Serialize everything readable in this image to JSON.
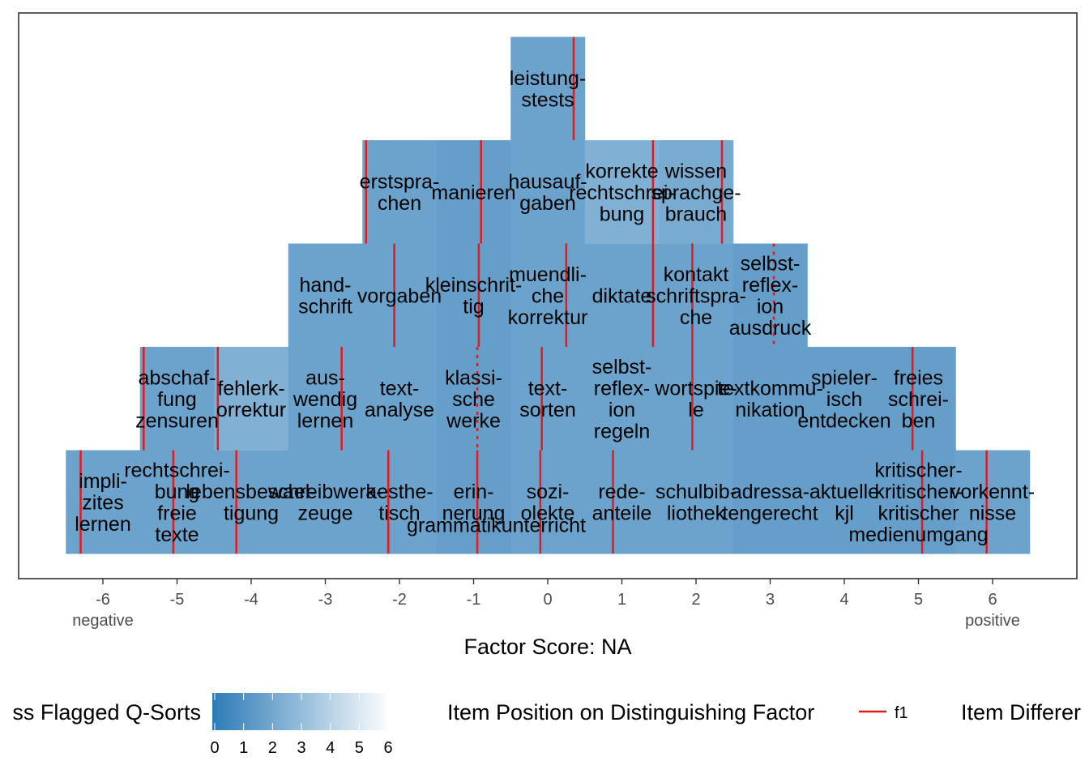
{
  "chart_data": {
    "type": "heatmap",
    "xlabel": "Factor Score: NA",
    "x_ticks": [
      -6,
      -5,
      -4,
      -3,
      -2,
      -1,
      0,
      1,
      2,
      3,
      4,
      5,
      6
    ],
    "pole_labels": {
      "negative": "negative",
      "positive": "positive"
    },
    "fill_scale": {
      "low": "#2c7bb6",
      "high": "#ffffff",
      "domain": [
        0,
        6
      ]
    },
    "line_color": "#e41a1c",
    "legend": {
      "fill_title": "ss Flagged Q-Sorts",
      "fill_breaks": [
        "0",
        "1",
        "2",
        "3",
        "4",
        "5",
        "6"
      ],
      "line_title": "Item Position on Distinguishing Factor",
      "line_key": "f1",
      "other_title": "Item Differer"
    },
    "items": [
      {
        "x": -6,
        "row": 0,
        "label": "impli-\nzites\nlernen",
        "fill": 1.8,
        "mark": -6.3,
        "style": "solid"
      },
      {
        "x": -5,
        "row": 0,
        "label": "rechtschrei-\nbung\nfreie\ntexte",
        "fill": 1.8,
        "mark": -5.05,
        "style": "solid"
      },
      {
        "x": -4,
        "row": 0,
        "label": "lebensbewael-\ntigung",
        "fill": 1.8,
        "mark": -4.2,
        "style": "solid"
      },
      {
        "x": -3,
        "row": 0,
        "label": "schreibwerk-\nzeuge",
        "fill": 1.8,
        "mark": null,
        "style": null
      },
      {
        "x": -2,
        "row": 0,
        "label": "aesthe-\ntisch",
        "fill": 1.8,
        "mark": -2.15,
        "style": "solid"
      },
      {
        "x": -1,
        "row": 0,
        "label": "erin-\nnerung",
        "fill": 1.6,
        "mark": -0.95,
        "style": "solid"
      },
      {
        "x": 0,
        "row": 0,
        "label": "sozi-\nolekte",
        "fill": 1.8,
        "mark": -0.1,
        "style": "solid"
      },
      {
        "x": 1,
        "row": 0,
        "label": "rede-\nanteile",
        "fill": 1.8,
        "mark": 0.88,
        "style": "solid"
      },
      {
        "x": 2,
        "row": 0,
        "label": "schulbib-\nliothek",
        "fill": 1.8,
        "mark": null,
        "style": null
      },
      {
        "x": 3,
        "row": 0,
        "label": "adressa-\ntengerecht",
        "fill": 1.6,
        "mark": null,
        "style": null
      },
      {
        "x": 4,
        "row": 0,
        "label": "aktuelle\nkjl",
        "fill": 1.6,
        "mark": null,
        "style": null
      },
      {
        "x": 5,
        "row": 0,
        "label": "kritischer-\nkritischer-\nkritischer\nmedienumgang",
        "fill": 1.6,
        "mark": 5.05,
        "style": "solid"
      },
      {
        "x": 6,
        "row": 0,
        "label": "vorkennt-\nnisse",
        "fill": 1.8,
        "mark": 5.92,
        "style": "solid"
      },
      {
        "x": -5,
        "row": 1,
        "label": "abschaf-\nfung\nzensuren",
        "fill": 1.8,
        "mark": -5.45,
        "style": "solid"
      },
      {
        "x": -4,
        "row": 1,
        "label": "fehlerk-\norrektur",
        "fill": 2.4,
        "mark": -4.45,
        "style": "solid"
      },
      {
        "x": -3,
        "row": 1,
        "label": "aus-\nwendig\nlernen",
        "fill": 1.8,
        "mark": -2.78,
        "style": "solid"
      },
      {
        "x": -2,
        "row": 1,
        "label": "text-\nanalyse",
        "fill": 1.8,
        "mark": null,
        "style": null
      },
      {
        "x": -1,
        "row": 1,
        "label": "klassi-\nsche\nwerke",
        "fill": 1.6,
        "mark": -0.95,
        "style": "dashed"
      },
      {
        "x": 0,
        "row": 1,
        "label": "text-\nsorten",
        "fill": 1.8,
        "mark": -0.08,
        "style": "solid"
      },
      {
        "x": 1,
        "row": 1,
        "label": "selbst-\nreflex-\nion\nregeln",
        "fill": 1.8,
        "mark": null,
        "style": null
      },
      {
        "x": 2,
        "row": 1,
        "label": "wortspie-\nle",
        "fill": 1.8,
        "mark": 1.95,
        "style": "solid"
      },
      {
        "x": 3,
        "row": 1,
        "label": "textkommu-\nnikation",
        "fill": 1.6,
        "mark": null,
        "style": null
      },
      {
        "x": 4,
        "row": 1,
        "label": "spieler-\nisch\nentdecken",
        "fill": 1.6,
        "mark": null,
        "style": null
      },
      {
        "x": 5,
        "row": 1,
        "label": "freies\nschrei-\nben",
        "fill": 1.6,
        "mark": 4.92,
        "style": "solid"
      },
      {
        "x": -3,
        "row": 2,
        "label": "hand-\nschrift",
        "fill": 1.8,
        "mark": null,
        "style": null
      },
      {
        "x": -2,
        "row": 2,
        "label": "vorgaben",
        "fill": 1.8,
        "mark": -2.07,
        "style": "solid"
      },
      {
        "x": -1,
        "row": 2,
        "label": "kleinschrit-\ntig",
        "fill": 1.6,
        "mark": -0.93,
        "style": "solid"
      },
      {
        "x": 0,
        "row": 2,
        "label": "muendli-\nche\nkorrektur",
        "fill": 1.8,
        "mark": 0.25,
        "style": "solid"
      },
      {
        "x": 1,
        "row": 2,
        "label": "diktate",
        "fill": 1.8,
        "mark": 1.42,
        "style": "solid"
      },
      {
        "x": 2,
        "row": 2,
        "label": "kontakt\nschriftspra-\nche",
        "fill": 1.8,
        "mark": 1.95,
        "style": "solid"
      },
      {
        "x": 3,
        "row": 2,
        "label": "selbst-\nreflex-\nion\nausdruck",
        "fill": 1.6,
        "mark": 3.05,
        "style": "dashed"
      },
      {
        "x": -2,
        "row": 3,
        "label": "erstspra-\nchen",
        "fill": 1.8,
        "mark": -2.45,
        "style": "solid"
      },
      {
        "x": -1,
        "row": 3,
        "label": "manieren",
        "fill": 1.6,
        "mark": -0.9,
        "style": "solid"
      },
      {
        "x": 0,
        "row": 3,
        "label": "hausauf-\ngaben",
        "fill": 1.8,
        "mark": null,
        "style": null
      },
      {
        "x": 1,
        "row": 3,
        "label": "korrekte\nrechtschrei-\nbung",
        "fill": 2.4,
        "mark": 1.42,
        "style": "solid"
      },
      {
        "x": 2,
        "row": 3,
        "label": "wissen\nsprachge-\nbrauch",
        "fill": 2.2,
        "mark": 2.35,
        "style": "solid"
      },
      {
        "x": 0,
        "row": 4,
        "label": "leistung-\nstests",
        "fill": 1.8,
        "mark": 0.35,
        "style": "solid"
      }
    ],
    "overlays": [
      {
        "x": -1.0,
        "row": 0,
        "label": "grammatikunterricht"
      }
    ],
    "xlim": [
      -6.5,
      6.5
    ],
    "grid": false
  }
}
